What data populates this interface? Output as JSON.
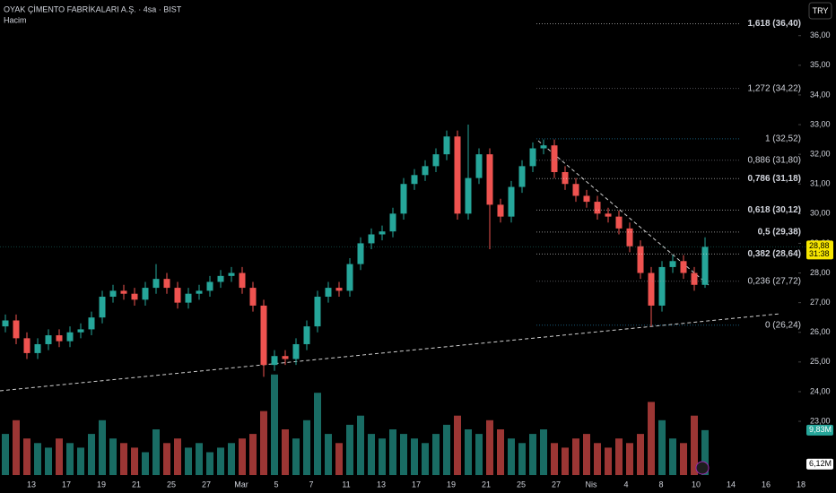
{
  "header": {
    "title": "OYAK ÇİMENTO FABRİKALARI A.Ş. · 4sa · BIST",
    "volume_label": "Hacim",
    "currency_button": "TRY"
  },
  "chart_data": {
    "type": "candlestick",
    "colors": {
      "up": "#26a69a",
      "down": "#ef5350"
    },
    "open": [
      26.2,
      26.4,
      25.8,
      25.3,
      25.6,
      25.9,
      25.7,
      26.0,
      26.1,
      26.5,
      27.2,
      27.4,
      27.3,
      27.1,
      27.5,
      27.8,
      27.5,
      27.0,
      27.3,
      27.4,
      27.7,
      27.9,
      28.0,
      27.5,
      26.9,
      24.9,
      25.2,
      25.1,
      25.6,
      26.2,
      27.2,
      27.5,
      27.4,
      28.3,
      29.0,
      29.3,
      29.4,
      30.0,
      31.0,
      31.3,
      31.6,
      32.0,
      32.6,
      30.0,
      31.2,
      32.0,
      30.3,
      29.9,
      30.9,
      31.6,
      32.2,
      32.3,
      31.4,
      31.0,
      30.6,
      30.4,
      30.0,
      29.9,
      29.5,
      28.9,
      28.0,
      26.9,
      28.2,
      28.4,
      28.0,
      27.6
    ],
    "high": [
      26.6,
      26.6,
      26.0,
      25.8,
      26.1,
      26.1,
      26.2,
      26.3,
      26.7,
      27.4,
      27.6,
      27.6,
      27.5,
      27.7,
      28.3,
      28.0,
      27.7,
      27.5,
      27.6,
      27.9,
      28.1,
      28.2,
      28.2,
      27.7,
      27.1,
      25.4,
      25.4,
      25.8,
      26.4,
      27.4,
      27.7,
      27.7,
      28.5,
      29.2,
      29.5,
      29.6,
      30.2,
      31.2,
      31.5,
      31.8,
      32.2,
      32.8,
      32.8,
      33.0,
      32.2,
      32.2,
      30.5,
      31.1,
      31.8,
      32.4,
      32.5,
      32.5,
      31.6,
      31.2,
      30.8,
      30.6,
      30.2,
      30.1,
      29.7,
      29.1,
      28.2,
      28.4,
      28.6,
      28.6,
      28.2,
      29.2
    ],
    "low": [
      26.0,
      25.6,
      25.1,
      25.1,
      25.4,
      25.5,
      25.5,
      25.8,
      25.9,
      26.3,
      27.0,
      27.1,
      26.9,
      26.9,
      27.3,
      27.3,
      26.8,
      26.8,
      27.1,
      27.2,
      27.5,
      27.7,
      27.3,
      26.7,
      24.5,
      24.7,
      24.9,
      24.9,
      25.4,
      26.0,
      27.0,
      27.2,
      27.2,
      28.1,
      28.8,
      29.1,
      29.2,
      29.8,
      30.8,
      31.1,
      31.4,
      31.8,
      29.8,
      29.8,
      31.0,
      28.8,
      29.7,
      29.7,
      30.7,
      31.4,
      32.0,
      31.2,
      30.8,
      30.4,
      30.2,
      29.8,
      29.7,
      29.3,
      28.7,
      27.8,
      26.2,
      26.7,
      28.0,
      27.8,
      27.4,
      27.5
    ],
    "close": [
      26.4,
      25.8,
      25.3,
      25.6,
      25.9,
      25.7,
      26.0,
      26.1,
      26.5,
      27.2,
      27.4,
      27.3,
      27.1,
      27.5,
      27.8,
      27.5,
      27.0,
      27.3,
      27.4,
      27.7,
      27.9,
      28.0,
      27.5,
      26.9,
      24.9,
      25.2,
      25.1,
      25.6,
      26.2,
      27.2,
      27.5,
      27.4,
      28.3,
      29.0,
      29.3,
      29.4,
      30.0,
      31.0,
      31.3,
      31.6,
      32.0,
      32.6,
      30.0,
      31.2,
      32.0,
      30.3,
      29.9,
      30.9,
      31.6,
      32.2,
      32.3,
      31.4,
      31.0,
      30.6,
      30.4,
      30.0,
      29.9,
      29.5,
      28.9,
      28.0,
      26.9,
      28.2,
      28.4,
      28.0,
      27.6,
      28.88
    ],
    "volume": [
      9,
      12,
      8,
      7,
      6,
      8,
      7,
      6,
      9,
      12,
      8,
      7,
      6,
      5,
      10,
      7,
      8,
      6,
      7,
      5,
      6,
      7,
      8,
      9,
      14,
      22,
      10,
      8,
      12,
      18,
      9,
      7,
      11,
      13,
      9,
      8,
      10,
      9,
      8,
      7,
      9,
      11,
      13,
      10,
      9,
      12,
      10,
      8,
      7,
      9,
      10,
      7,
      6,
      8,
      9,
      7,
      6,
      8,
      7,
      9,
      16,
      12,
      8,
      7,
      13,
      9.83
    ],
    "ylim": [
      21.4,
      37.2
    ],
    "yticks": [
      {
        "value": 23,
        "label": "23,00"
      },
      {
        "value": 24,
        "label": "24,00"
      },
      {
        "value": 25,
        "label": "25,00"
      },
      {
        "value": 26,
        "label": "26,00"
      },
      {
        "value": 27,
        "label": "27,00"
      },
      {
        "value": 28,
        "label": "28,00"
      },
      {
        "value": 29,
        "label": "29,00"
      },
      {
        "value": 30,
        "label": "30,00"
      },
      {
        "value": 31,
        "label": "31,00"
      },
      {
        "value": 32,
        "label": "32,00"
      },
      {
        "value": 33,
        "label": "33,00"
      },
      {
        "value": 34,
        "label": "34,00"
      },
      {
        "value": 35,
        "label": "35,00"
      },
      {
        "value": 36,
        "label": "36,00"
      }
    ],
    "x_tick_labels": [
      "13",
      "17",
      "19",
      "21",
      "25",
      "27",
      "Mar",
      "5",
      "7",
      "11",
      "13",
      "17",
      "19",
      "21",
      "25",
      "27",
      "Nis",
      "4",
      "8",
      "10",
      "14",
      "16",
      "18"
    ],
    "fib_levels": [
      {
        "value": 36.4,
        "label": "1,618 (36,40)",
        "color": "#ffffff"
      },
      {
        "value": 34.22,
        "label": "1,272 (34,22)",
        "color": "#9598a1"
      },
      {
        "value": 32.52,
        "label": "1 (32,52)",
        "color": "#2aa3d8"
      },
      {
        "value": 31.8,
        "label": "0,886 (31,80)",
        "color": "#9598a1"
      },
      {
        "value": 31.18,
        "label": "0,786 (31,18)",
        "color": "#ffffff"
      },
      {
        "value": 30.12,
        "label": "0,618 (30,12)",
        "color": "#ffffff"
      },
      {
        "value": 29.38,
        "label": "0,5 (29,38)",
        "color": "#ffffff"
      },
      {
        "value": 28.64,
        "label": "0,382 (28,64)",
        "color": "#ffffff"
      },
      {
        "value": 27.72,
        "label": "0,236 (27,72)",
        "color": "#9598a1"
      },
      {
        "value": 26.24,
        "label": "0 (26,24)",
        "color": "#2aa3d8"
      }
    ],
    "last_price": {
      "value": 28.88,
      "label": "28,88"
    },
    "countdown": "31:38",
    "last_volume": {
      "value": 9.83,
      "label": "9,83M"
    },
    "volume_ma": {
      "value": 6.12,
      "label": "6,12M"
    }
  }
}
